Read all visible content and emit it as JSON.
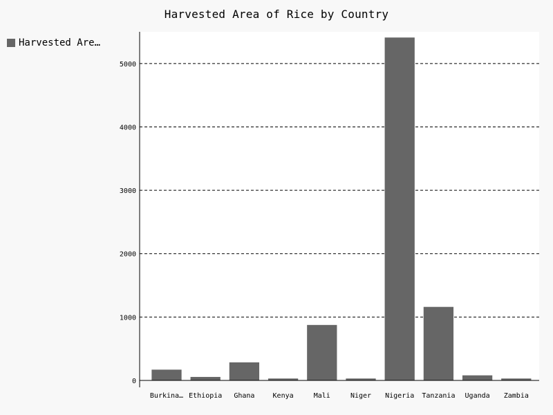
{
  "chart_data": {
    "type": "bar",
    "title": "Harvested Area of Rice by Country",
    "legend": {
      "position": "top-left",
      "label": "Harvested Area…"
    },
    "series": [
      {
        "name": "Harvested Area…",
        "color": "#666666",
        "values": [
          170,
          55,
          285,
          30,
          875,
          30,
          5410,
          1160,
          80,
          30
        ]
      }
    ],
    "categories": [
      "Burkina…",
      "Ethiopia",
      "Ghana",
      "Kenya",
      "Mali",
      "Niger",
      "Nigeria",
      "Tanzania",
      "Uganda",
      "Zambia"
    ],
    "yticks": [
      0,
      1000,
      2000,
      3000,
      4000,
      5000
    ],
    "ylim": [
      0,
      5500
    ],
    "grid": true,
    "colors": {
      "bar": "#666666",
      "plot_bg": "#ffffff",
      "page_bg": "#f8f8f8"
    }
  }
}
